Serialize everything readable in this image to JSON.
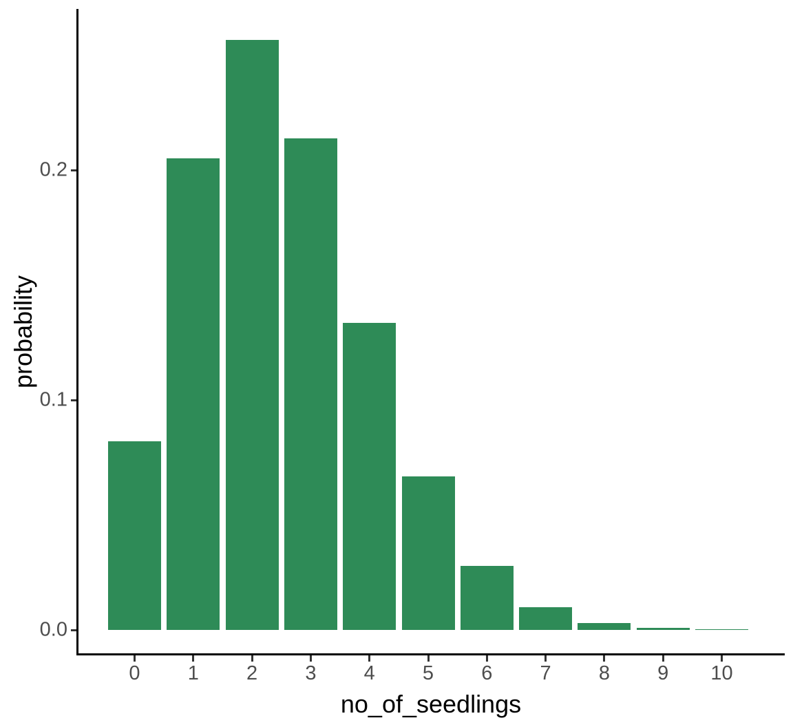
{
  "chart_data": {
    "type": "bar",
    "title": "",
    "xlabel": "no_of_seedlings",
    "ylabel": "probability",
    "categories": [
      "0",
      "1",
      "2",
      "3",
      "4",
      "5",
      "6",
      "7",
      "8",
      "9",
      "10"
    ],
    "values": [
      0.0821,
      0.2052,
      0.2565,
      0.2138,
      0.1336,
      0.0668,
      0.0278,
      0.0099,
      0.0031,
      0.0009,
      0.0002
    ],
    "y_ticks": [
      {
        "label": "0.0",
        "value": 0.0
      },
      {
        "label": "0.1",
        "value": 0.1
      },
      {
        "label": "0.2",
        "value": 0.2
      }
    ],
    "ylim": [
      0,
      0.27
    ],
    "grid": false,
    "legend_position": "none"
  },
  "colors": {
    "bar": "#2e8b57",
    "axis_line": "#000000",
    "tick_mark": "#333333",
    "tick_label": "#4d4d4d",
    "axis_title": "#000000",
    "background": "#ffffff"
  }
}
